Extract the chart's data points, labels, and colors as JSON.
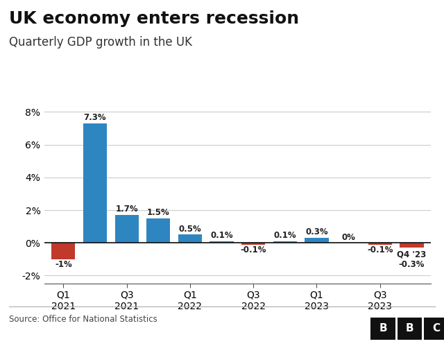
{
  "title": "UK economy enters recession",
  "subtitle": "Quarterly GDP growth in the UK",
  "source": "Source: Office for National Statistics",
  "x_tick_labels": [
    "Q1\n2021",
    "Q3\n2021",
    "Q1\n2022",
    "Q3\n2022",
    "Q1\n2023",
    "Q3\n2023"
  ],
  "x_tick_positions": [
    0,
    2,
    4,
    6,
    8,
    10
  ],
  "values": [
    -1.0,
    7.3,
    1.7,
    1.5,
    0.5,
    0.1,
    -0.1,
    0.1,
    0.3,
    0.0,
    -0.1,
    -0.3
  ],
  "bar_colors": [
    "#c0392b",
    "#2e86c1",
    "#2e86c1",
    "#2e86c1",
    "#2e86c1",
    "#2e86c1",
    "#c0392b",
    "#2e86c1",
    "#2e86c1",
    "#2e86c1",
    "#c0392b",
    "#c0392b"
  ],
  "labels": [
    "-1%",
    "7.3%",
    "1.7%",
    "1.5%",
    "0.5%",
    "0.1%",
    "-0.1%",
    "0.1%",
    "0.3%",
    "0%",
    "-0.1%",
    ""
  ],
  "ylim": [
    -2.5,
    8.5
  ],
  "yticks": [
    -2,
    0,
    2,
    4,
    6,
    8
  ],
  "ytick_labels": [
    "-2%",
    "0%",
    "2%",
    "4%",
    "6%",
    "8%"
  ],
  "background_color": "#ffffff",
  "title_fontsize": 18,
  "subtitle_fontsize": 12,
  "label_fontsize": 8.5,
  "axis_fontsize": 10,
  "grid_color": "#cccccc",
  "text_color": "#222222"
}
